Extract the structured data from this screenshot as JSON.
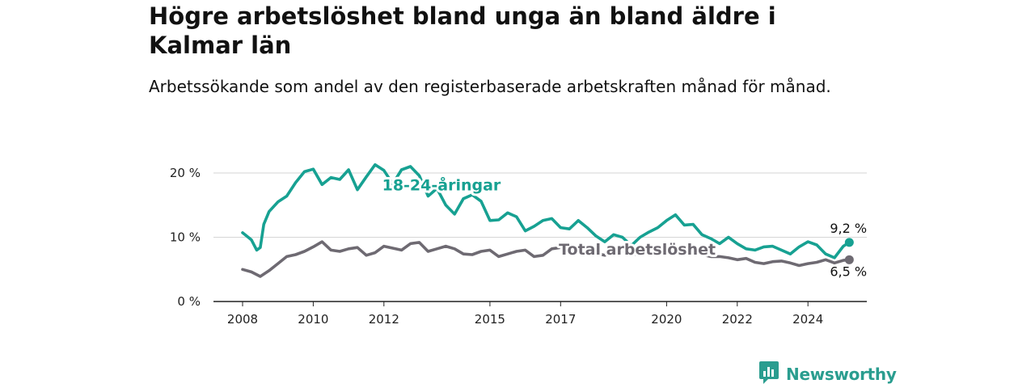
{
  "title": "Högre arbetslöshet bland unga än bland äldre i Kalmar län",
  "subtitle": "Arbetssökande som andel av den registerbaserade arbetskraften månad för månad.",
  "brand": {
    "name": "Newsworthy",
    "icon": "newsworthy-logo-icon",
    "color": "#2a9d8f"
  },
  "chart_data": {
    "type": "line",
    "title": "Högre arbetslöshet bland unga än bland äldre i Kalmar län",
    "subtitle": "Arbetssökande som andel av den registerbaserade arbetskraften månad för månad.",
    "xlabel": "",
    "ylabel": "",
    "ylim": [
      0,
      22
    ],
    "xlim": [
      2007.7,
      2025.8
    ],
    "y_ticks": [
      0,
      10,
      20
    ],
    "y_tick_labels": [
      "0 %",
      "10 %",
      "20 %"
    ],
    "x_ticks": [
      2008,
      2010,
      2012,
      2015,
      2017,
      2020,
      2022,
      2024
    ],
    "x_tick_labels": [
      "2008",
      "2010",
      "2012",
      "2015",
      "2017",
      "2020",
      "2022",
      "2024"
    ],
    "grid": "horizontal",
    "legend": "none",
    "series": [
      {
        "name": "18-24-åringar",
        "color": "#17a192",
        "end_label": "9,2 %",
        "x": [
          2008.0,
          2008.25,
          2008.4,
          2008.5,
          2008.6,
          2008.75,
          2009.0,
          2009.25,
          2009.5,
          2009.75,
          2010.0,
          2010.25,
          2010.5,
          2010.75,
          2011.0,
          2011.25,
          2011.5,
          2011.75,
          2012.0,
          2012.25,
          2012.5,
          2012.75,
          2013.0,
          2013.25,
          2013.5,
          2013.75,
          2014.0,
          2014.25,
          2014.5,
          2014.75,
          2015.0,
          2015.25,
          2015.5,
          2015.75,
          2016.0,
          2016.25,
          2016.5,
          2016.75,
          2017.0,
          2017.25,
          2017.5,
          2017.75,
          2018.0,
          2018.25,
          2018.5,
          2018.75,
          2019.0,
          2019.25,
          2019.5,
          2019.75,
          2020.0,
          2020.25,
          2020.5,
          2020.75,
          2021.0,
          2021.25,
          2021.5,
          2021.75,
          2022.0,
          2022.25,
          2022.5,
          2022.75,
          2023.0,
          2023.25,
          2023.5,
          2023.75,
          2024.0,
          2024.25,
          2024.5,
          2024.75,
          2025.0,
          2025.17
        ],
        "values": [
          10.7,
          9.6,
          8.0,
          8.4,
          12.0,
          14.0,
          15.5,
          16.4,
          18.5,
          20.2,
          20.6,
          18.2,
          19.3,
          19.0,
          20.5,
          17.4,
          19.4,
          21.3,
          20.4,
          18.3,
          20.5,
          21.0,
          19.6,
          16.4,
          17.6,
          15.0,
          13.6,
          16.0,
          16.6,
          15.6,
          12.6,
          12.7,
          13.8,
          13.2,
          11.0,
          11.7,
          12.6,
          12.9,
          11.5,
          11.3,
          12.6,
          11.5,
          10.2,
          9.3,
          10.4,
          10.0,
          8.7,
          10.0,
          10.8,
          11.5,
          12.6,
          13.5,
          11.9,
          12.0,
          10.4,
          9.8,
          9.0,
          10.0,
          9.0,
          8.2,
          8.0,
          8.5,
          8.6,
          8.0,
          7.4,
          8.5,
          9.3,
          8.8,
          7.4,
          6.8,
          8.6,
          9.2
        ]
      },
      {
        "name": "Total arbetslöshet",
        "color": "#6e6a72",
        "end_label": "6,5 %",
        "x": [
          2008.0,
          2008.25,
          2008.5,
          2008.75,
          2009.0,
          2009.25,
          2009.5,
          2009.75,
          2010.0,
          2010.25,
          2010.5,
          2010.75,
          2011.0,
          2011.25,
          2011.5,
          2011.75,
          2012.0,
          2012.25,
          2012.5,
          2012.75,
          2013.0,
          2013.25,
          2013.5,
          2013.75,
          2014.0,
          2014.25,
          2014.5,
          2014.75,
          2015.0,
          2015.25,
          2015.5,
          2015.75,
          2016.0,
          2016.25,
          2016.5,
          2016.75,
          2017.0,
          2017.25,
          2017.5,
          2017.75,
          2018.0,
          2018.25,
          2018.5,
          2018.75,
          2019.0,
          2019.25,
          2019.5,
          2019.75,
          2020.0,
          2020.25,
          2020.5,
          2020.75,
          2021.0,
          2021.25,
          2021.5,
          2021.75,
          2022.0,
          2022.25,
          2022.5,
          2022.75,
          2023.0,
          2023.25,
          2023.5,
          2023.75,
          2024.0,
          2024.25,
          2024.5,
          2024.75,
          2025.0,
          2025.17
        ],
        "values": [
          5.0,
          4.6,
          3.9,
          4.8,
          5.9,
          7.0,
          7.3,
          7.8,
          8.5,
          9.3,
          8.0,
          7.8,
          8.2,
          8.4,
          7.2,
          7.6,
          8.6,
          8.3,
          8.0,
          9.0,
          9.2,
          7.8,
          8.2,
          8.6,
          8.2,
          7.4,
          7.3,
          7.8,
          8.0,
          7.0,
          7.4,
          7.8,
          8.0,
          7.0,
          7.2,
          8.2,
          8.4,
          7.8,
          7.5,
          7.8,
          7.5,
          7.2,
          7.6,
          7.8,
          7.4,
          7.3,
          7.8,
          8.0,
          7.6,
          7.8,
          7.8,
          7.6,
          7.3,
          7.0,
          7.0,
          6.8,
          6.5,
          6.7,
          6.1,
          5.9,
          6.2,
          6.3,
          6.0,
          5.6,
          5.9,
          6.1,
          6.5,
          6.0,
          6.4,
          6.5
        ]
      }
    ]
  }
}
